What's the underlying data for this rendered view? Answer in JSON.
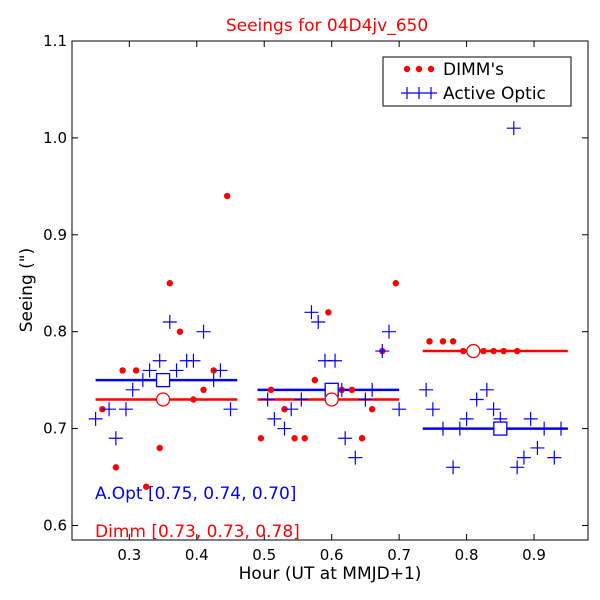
{
  "chart_data": {
    "type": "scatter",
    "title": "Seeings for 04D4jv_650",
    "xlabel": "Hour (UT at MMJD+1)",
    "ylabel": "Seeing (\")",
    "xlim": [
      0.215,
      0.98
    ],
    "ylim": [
      0.585,
      1.1
    ],
    "xticks": [
      0.3,
      0.4,
      0.5,
      0.6,
      0.7,
      0.8,
      0.9
    ],
    "yticks": [
      0.6,
      0.7,
      0.8,
      0.9,
      1.0,
      1.1
    ],
    "xtick_labels": [
      "0.3",
      "0.4",
      "0.5",
      "0.6",
      "0.7",
      "0.8",
      "0.9"
    ],
    "ytick_labels": [
      "0.6",
      "0.7",
      "0.8",
      "0.9",
      "1.0",
      "1.1"
    ],
    "grid": false,
    "legend_position": "top-right",
    "colors": {
      "dimm": "#ff0000",
      "active_optic": "#0000ff",
      "title": "#ff0000"
    },
    "series": [
      {
        "name": "DIMM's",
        "marker": "dot",
        "color": "#ff0000",
        "points": [
          [
            0.26,
            0.72
          ],
          [
            0.28,
            0.66
          ],
          [
            0.29,
            0.76
          ],
          [
            0.31,
            0.76
          ],
          [
            0.325,
            0.64
          ],
          [
            0.345,
            0.68
          ],
          [
            0.36,
            0.85
          ],
          [
            0.375,
            0.8
          ],
          [
            0.395,
            0.73
          ],
          [
            0.41,
            0.74
          ],
          [
            0.425,
            0.76
          ],
          [
            0.445,
            0.94
          ],
          [
            0.495,
            0.69
          ],
          [
            0.51,
            0.74
          ],
          [
            0.53,
            0.72
          ],
          [
            0.545,
            0.69
          ],
          [
            0.56,
            0.69
          ],
          [
            0.575,
            0.75
          ],
          [
            0.595,
            0.82
          ],
          [
            0.615,
            0.74
          ],
          [
            0.63,
            0.74
          ],
          [
            0.645,
            0.69
          ],
          [
            0.66,
            0.72
          ],
          [
            0.675,
            0.78
          ],
          [
            0.695,
            0.85
          ],
          [
            0.745,
            0.79
          ],
          [
            0.765,
            0.79
          ],
          [
            0.78,
            0.79
          ],
          [
            0.795,
            0.78
          ],
          [
            0.81,
            0.78
          ],
          [
            0.825,
            0.78
          ],
          [
            0.84,
            0.78
          ],
          [
            0.855,
            0.78
          ],
          [
            0.875,
            0.78
          ]
        ]
      },
      {
        "name": "Active Optic",
        "marker": "plus",
        "color": "#0000ff",
        "points": [
          [
            0.25,
            0.71
          ],
          [
            0.27,
            0.72
          ],
          [
            0.28,
            0.69
          ],
          [
            0.295,
            0.72
          ],
          [
            0.305,
            0.74
          ],
          [
            0.32,
            0.75
          ],
          [
            0.33,
            0.76
          ],
          [
            0.345,
            0.77
          ],
          [
            0.36,
            0.81
          ],
          [
            0.37,
            0.76
          ],
          [
            0.385,
            0.77
          ],
          [
            0.395,
            0.77
          ],
          [
            0.41,
            0.8
          ],
          [
            0.425,
            0.75
          ],
          [
            0.435,
            0.76
          ],
          [
            0.45,
            0.72
          ],
          [
            0.505,
            0.73
          ],
          [
            0.515,
            0.71
          ],
          [
            0.53,
            0.7
          ],
          [
            0.54,
            0.72
          ],
          [
            0.555,
            0.73
          ],
          [
            0.57,
            0.82
          ],
          [
            0.58,
            0.81
          ],
          [
            0.59,
            0.77
          ],
          [
            0.605,
            0.77
          ],
          [
            0.615,
            0.74
          ],
          [
            0.62,
            0.69
          ],
          [
            0.635,
            0.67
          ],
          [
            0.65,
            0.73
          ],
          [
            0.66,
            0.74
          ],
          [
            0.675,
            0.78
          ],
          [
            0.685,
            0.8
          ],
          [
            0.7,
            0.72
          ],
          [
            0.74,
            0.74
          ],
          [
            0.75,
            0.72
          ],
          [
            0.765,
            0.7
          ],
          [
            0.78,
            0.66
          ],
          [
            0.79,
            0.7
          ],
          [
            0.8,
            0.71
          ],
          [
            0.815,
            0.73
          ],
          [
            0.83,
            0.74
          ],
          [
            0.84,
            0.72
          ],
          [
            0.85,
            0.71
          ],
          [
            0.87,
            1.01
          ],
          [
            0.875,
            0.66
          ],
          [
            0.885,
            0.67
          ],
          [
            0.895,
            0.71
          ],
          [
            0.905,
            0.68
          ],
          [
            0.915,
            0.7
          ],
          [
            0.93,
            0.67
          ],
          [
            0.94,
            0.7
          ]
        ]
      }
    ],
    "medians": [
      {
        "series": "Active Optic",
        "color": "#0000ff",
        "marker": "square",
        "segments": [
          {
            "x_start": 0.25,
            "x_end": 0.46,
            "y": 0.75,
            "marker_x": 0.35
          },
          {
            "x_start": 0.49,
            "x_end": 0.7,
            "y": 0.74,
            "marker_x": 0.6
          },
          {
            "x_start": 0.735,
            "x_end": 0.95,
            "y": 0.7,
            "marker_x": 0.85
          }
        ]
      },
      {
        "series": "DIMM's",
        "color": "#ff0000",
        "marker": "circle",
        "segments": [
          {
            "x_start": 0.25,
            "x_end": 0.46,
            "y": 0.73,
            "marker_x": 0.35
          },
          {
            "x_start": 0.49,
            "x_end": 0.7,
            "y": 0.73,
            "marker_x": 0.6
          },
          {
            "x_start": 0.735,
            "x_end": 0.95,
            "y": 0.78,
            "marker_x": 0.81
          }
        ]
      }
    ],
    "annotations": [
      {
        "text": "A.Opt [0.75, 0.74, 0.70]",
        "color": "#0000ff"
      },
      {
        "text": "Dimm [0.73, 0.73, 0.78]",
        "color": "#ff0000"
      }
    ],
    "legend": [
      {
        "label": "DIMM's",
        "color": "#ff0000",
        "marker": "dot"
      },
      {
        "label": "Active Optic",
        "color": "#0000ff",
        "marker": "plus"
      }
    ]
  }
}
